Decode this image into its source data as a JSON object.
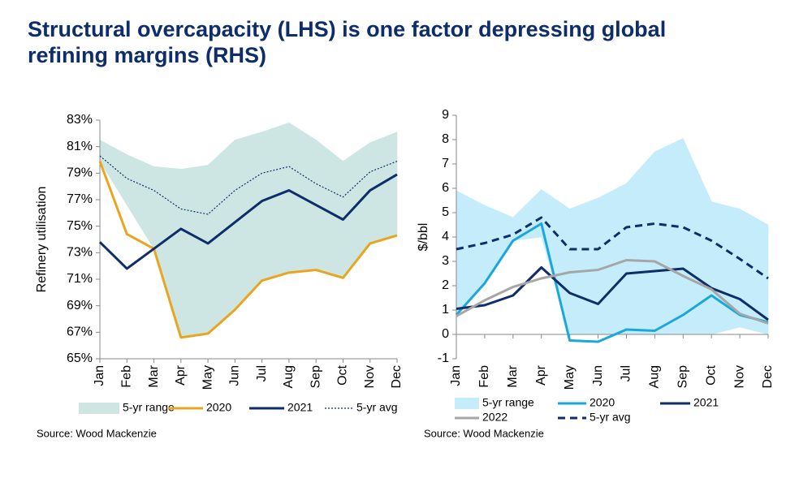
{
  "title": "Structural overcapacity (LHS) is one factor depressing global refining margins (RHS)",
  "chart_data": [
    {
      "type": "line",
      "y_label": "Refinery utilisation",
      "source": "Source: Wood Mackenzie",
      "categories": [
        "Jan",
        "Feb",
        "Mar",
        "Apr",
        "May",
        "Jun",
        "Jul",
        "Aug",
        "Sep",
        "Oct",
        "Nov",
        "Dec"
      ],
      "ylim": [
        65,
        83
      ],
      "yticks": [
        {
          "value": 65,
          "label": "65%"
        },
        {
          "value": 67,
          "label": "67%"
        },
        {
          "value": 69,
          "label": "69%"
        },
        {
          "value": 71,
          "label": "71%"
        },
        {
          "value": 73,
          "label": "73%"
        },
        {
          "value": 75,
          "label": "75%"
        },
        {
          "value": 77,
          "label": "77%"
        },
        {
          "value": 79,
          "label": "79%"
        },
        {
          "value": 81,
          "label": "81%"
        },
        {
          "value": 83,
          "label": "83%"
        }
      ],
      "grid": false,
      "series": [
        {
          "name": "5-yr range",
          "type": "range",
          "color": "#cde6e3",
          "low": [
            79.9,
            76.6,
            73.3,
            66.6,
            66.9,
            68.7,
            70.9,
            71.5,
            71.7,
            71.1,
            73.7,
            74.3
          ],
          "high": [
            81.5,
            80.4,
            79.5,
            79.3,
            79.6,
            81.5,
            82.1,
            82.8,
            81.5,
            79.9,
            81.3,
            82.1
          ]
        },
        {
          "name": "2020",
          "color": "#e8a520",
          "style": "solid",
          "values": [
            79.9,
            74.4,
            73.3,
            66.6,
            66.9,
            68.7,
            70.9,
            71.5,
            71.7,
            71.1,
            73.7,
            74.3
          ]
        },
        {
          "name": "2021",
          "color": "#0d2d6b",
          "style": "solid",
          "values": [
            73.8,
            71.8,
            73.3,
            74.8,
            73.7,
            75.3,
            76.9,
            77.7,
            76.6,
            75.5,
            77.7,
            78.9
          ]
        },
        {
          "name": "5-yr avg",
          "color": "#0d2d6b",
          "style": "dotted",
          "values": [
            80.3,
            78.6,
            77.7,
            76.3,
            75.9,
            77.7,
            79.0,
            79.5,
            78.2,
            77.2,
            79.1,
            79.9
          ]
        }
      ]
    },
    {
      "type": "line",
      "y_label": "$/bbl",
      "source": "Source: Wood Mackenzie",
      "categories": [
        "Jan",
        "Feb",
        "Mar",
        "Apr",
        "May",
        "Jun",
        "Jul",
        "Aug",
        "Sep",
        "Oct",
        "Nov",
        "Dec"
      ],
      "ylim": [
        -1,
        9
      ],
      "yticks": [
        -1,
        0,
        1,
        2,
        3,
        4,
        5,
        6,
        7,
        8,
        9
      ],
      "grid": false,
      "series": [
        {
          "name": "5-yr range",
          "type": "range",
          "color": "#c5ecfb",
          "low": [
            0.8,
            2.1,
            3.85,
            4.0,
            0,
            0,
            0,
            0,
            0,
            0,
            0.3,
            0
          ],
          "high": [
            5.9,
            5.3,
            4.8,
            5.95,
            5.15,
            5.6,
            6.2,
            7.5,
            8.05,
            5.45,
            5.15,
            4.5
          ]
        },
        {
          "name": "2020",
          "color": "#1aa7dc",
          "style": "solid",
          "values": [
            0.8,
            2.1,
            3.85,
            4.55,
            -0.25,
            -0.3,
            0.2,
            0.15,
            0.8,
            1.6,
            0.8,
            0.5
          ]
        },
        {
          "name": "2021",
          "color": "#0d2d6b",
          "style": "solid",
          "values": [
            1.05,
            1.2,
            1.6,
            2.75,
            1.7,
            1.25,
            2.5,
            2.6,
            2.7,
            1.9,
            1.45,
            0.6
          ]
        },
        {
          "name": "2022",
          "color": "#a6a6a6",
          "style": "solid",
          "values": [
            0.75,
            1.4,
            1.95,
            2.3,
            2.55,
            2.65,
            3.05,
            3.0,
            2.4,
            1.85,
            0.85,
            0.45
          ]
        },
        {
          "name": "5-yr avg",
          "color": "#0d2d6b",
          "style": "dashed",
          "values": [
            3.5,
            3.75,
            4.1,
            4.8,
            3.5,
            3.5,
            4.4,
            4.55,
            4.4,
            3.85,
            3.1,
            2.3
          ]
        }
      ]
    }
  ]
}
